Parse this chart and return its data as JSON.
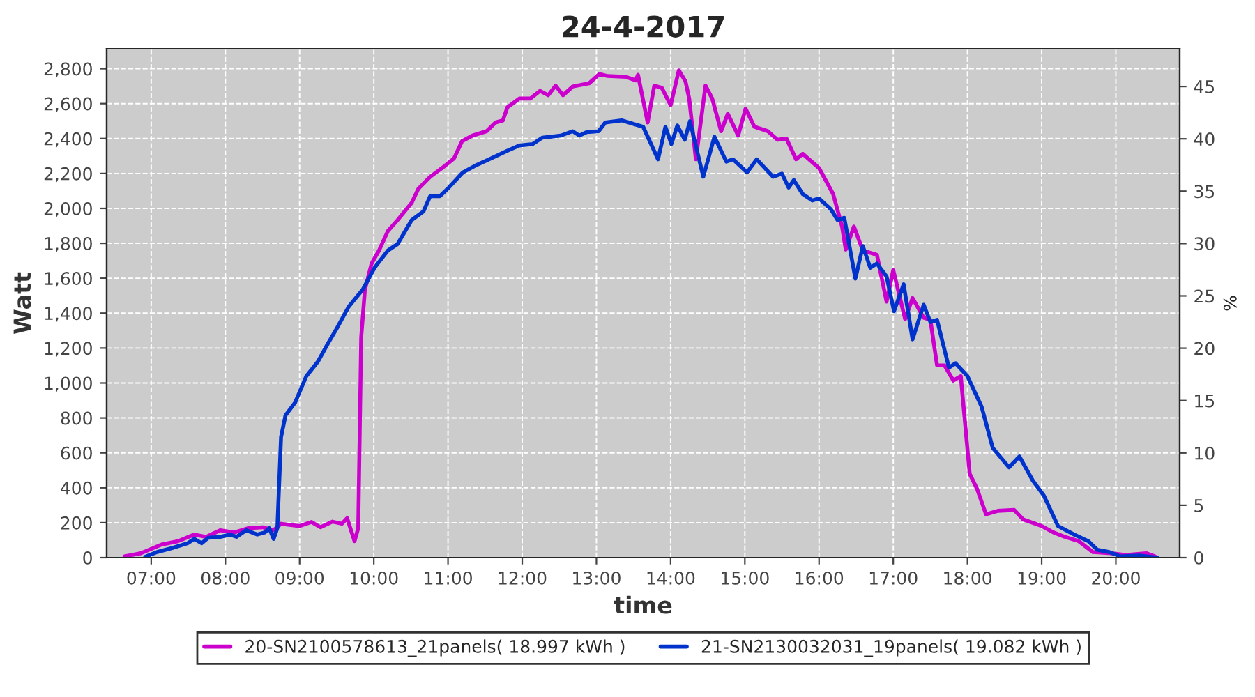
{
  "chart_data": {
    "type": "line",
    "title": "24-4-2017",
    "xlabel": "time",
    "ylabel": "Watt",
    "y2label": "%",
    "xlim": [
      6.4,
      20.86
    ],
    "ylim": [
      0,
      2914
    ],
    "y2lim": [
      0,
      48.6
    ],
    "xticks": [
      {
        "value": 7,
        "label": "07:00"
      },
      {
        "value": 8,
        "label": "08:00"
      },
      {
        "value": 9,
        "label": "09:00"
      },
      {
        "value": 10,
        "label": "10:00"
      },
      {
        "value": 11,
        "label": "11:00"
      },
      {
        "value": 12,
        "label": "12:00"
      },
      {
        "value": 13,
        "label": "13:00"
      },
      {
        "value": 14,
        "label": "14:00"
      },
      {
        "value": 15,
        "label": "15:00"
      },
      {
        "value": 16,
        "label": "16:00"
      },
      {
        "value": 17,
        "label": "17:00"
      },
      {
        "value": 18,
        "label": "18:00"
      },
      {
        "value": 19,
        "label": "19:00"
      },
      {
        "value": 20,
        "label": "20:00"
      }
    ],
    "yticks": [
      0,
      200,
      400,
      600,
      800,
      {
        "value": 1000,
        "label": "1,000"
      },
      {
        "value": 1200,
        "label": "1,200"
      },
      {
        "value": 1400,
        "label": "1,400"
      },
      {
        "value": 1600,
        "label": "1,600"
      },
      {
        "value": 1800,
        "label": "1,800"
      },
      {
        "value": 2000,
        "label": "2,000"
      },
      {
        "value": 2200,
        "label": "2,200"
      },
      {
        "value": 2400,
        "label": "2,400"
      },
      {
        "value": 2600,
        "label": "2,600"
      },
      {
        "value": 2800,
        "label": "2,800"
      }
    ],
    "y2ticks": [
      0,
      5,
      10,
      15,
      20,
      25,
      30,
      35,
      40,
      45
    ],
    "grid": true,
    "legend": "bottom",
    "marker": "none",
    "line_style": "solid",
    "series": [
      {
        "name": "20-SN2100578613_21panels( 18.997 kWh )",
        "color": "#cc00cc",
        "x": [
          6.64,
          6.86,
          7.0,
          7.14,
          7.36,
          7.58,
          7.74,
          7.93,
          8.12,
          8.31,
          8.5,
          8.65,
          8.75,
          9.0,
          9.16,
          9.28,
          9.44,
          9.57,
          9.64,
          9.74,
          9.79,
          9.83,
          9.88,
          9.97,
          10.07,
          10.19,
          10.32,
          10.51,
          10.6,
          10.76,
          10.92,
          11.08,
          11.19,
          11.33,
          11.52,
          11.64,
          11.74,
          11.8,
          11.96,
          12.11,
          12.24,
          12.35,
          12.45,
          12.55,
          12.68,
          12.9,
          13.04,
          13.15,
          13.4,
          13.53,
          13.56,
          13.69,
          13.78,
          13.88,
          14.0,
          14.11,
          14.2,
          14.25,
          14.34,
          14.47,
          14.56,
          14.68,
          14.77,
          14.91,
          15.01,
          15.13,
          15.31,
          15.44,
          15.56,
          15.69,
          15.78,
          16.0,
          16.19,
          16.31,
          16.36,
          16.47,
          16.59,
          16.78,
          16.91,
          17.0,
          17.16,
          17.26,
          17.41,
          17.5,
          17.59,
          17.69,
          17.81,
          17.91,
          18.03,
          18.13,
          18.25,
          18.41,
          18.63,
          18.75,
          19.0,
          19.16,
          19.31,
          19.5,
          19.69,
          19.94,
          20.13,
          20.41,
          20.53
        ],
        "values": [
          7,
          25,
          50,
          75,
          94,
          132,
          119,
          157,
          144,
          169,
          174,
          157,
          194,
          181,
          204,
          174,
          206,
          194,
          226,
          94,
          169,
          1262,
          1535,
          1684,
          1759,
          1871,
          1933,
          2032,
          2112,
          2181,
          2231,
          2286,
          2385,
          2417,
          2442,
          2492,
          2504,
          2579,
          2629,
          2629,
          2673,
          2648,
          2703,
          2648,
          2698,
          2716,
          2770,
          2758,
          2753,
          2733,
          2765,
          2492,
          2703,
          2691,
          2591,
          2790,
          2728,
          2629,
          2281,
          2703,
          2629,
          2442,
          2542,
          2417,
          2571,
          2467,
          2442,
          2393,
          2400,
          2281,
          2313,
          2231,
          2082,
          1896,
          1764,
          1896,
          1759,
          1734,
          1466,
          1647,
          1366,
          1486,
          1374,
          1362,
          1101,
          1101,
          1014,
          1039,
          480,
          393,
          248,
          268,
          273,
          219,
          181,
          144,
          119,
          94,
          32,
          25,
          15,
          25,
          7
        ]
      },
      {
        "name": "21-SN2130032031_19panels( 19.082 kWh )",
        "color": "#0033cc",
        "x": [
          6.92,
          7.08,
          7.3,
          7.49,
          7.58,
          7.68,
          7.77,
          7.93,
          8.06,
          8.15,
          8.28,
          8.43,
          8.53,
          8.59,
          8.65,
          8.7,
          8.75,
          8.81,
          8.94,
          9.09,
          9.25,
          9.38,
          9.5,
          9.66,
          9.85,
          10.01,
          10.19,
          10.32,
          10.51,
          10.67,
          10.76,
          10.89,
          11.01,
          11.2,
          11.36,
          11.58,
          11.8,
          11.96,
          12.14,
          12.27,
          12.52,
          12.68,
          12.77,
          12.87,
          13.03,
          13.12,
          13.34,
          13.63,
          13.83,
          13.93,
          14.01,
          14.09,
          14.19,
          14.26,
          14.44,
          14.59,
          14.75,
          14.84,
          15.03,
          15.16,
          15.38,
          15.5,
          15.59,
          15.66,
          15.78,
          15.91,
          16.0,
          16.16,
          16.25,
          16.34,
          16.49,
          16.59,
          16.69,
          16.78,
          16.91,
          17.01,
          17.14,
          17.26,
          17.41,
          17.5,
          17.59,
          17.75,
          17.84,
          18.0,
          18.19,
          18.34,
          18.56,
          18.7,
          18.88,
          19.03,
          19.22,
          19.44,
          19.63,
          19.75,
          19.91,
          20.06,
          20.31,
          20.56
        ],
        "values": [
          5,
          32,
          57,
          82,
          107,
          82,
          114,
          119,
          132,
          119,
          157,
          132,
          144,
          169,
          107,
          169,
          691,
          815,
          889,
          1039,
          1125,
          1225,
          1312,
          1436,
          1535,
          1660,
          1759,
          1796,
          1933,
          1983,
          2070,
          2070,
          2119,
          2206,
          2243,
          2286,
          2330,
          2360,
          2368,
          2405,
          2417,
          2442,
          2417,
          2437,
          2442,
          2492,
          2504,
          2467,
          2281,
          2467,
          2368,
          2475,
          2393,
          2499,
          2181,
          2410,
          2268,
          2281,
          2206,
          2281,
          2181,
          2199,
          2119,
          2162,
          2082,
          2045,
          2057,
          1995,
          1933,
          1946,
          1598,
          1784,
          1660,
          1684,
          1610,
          1411,
          1565,
          1250,
          1448,
          1349,
          1362,
          1088,
          1113,
          1039,
          865,
          629,
          517,
          579,
          442,
          355,
          181,
          132,
          94,
          45,
          32,
          7,
          12,
          0
        ]
      }
    ]
  }
}
